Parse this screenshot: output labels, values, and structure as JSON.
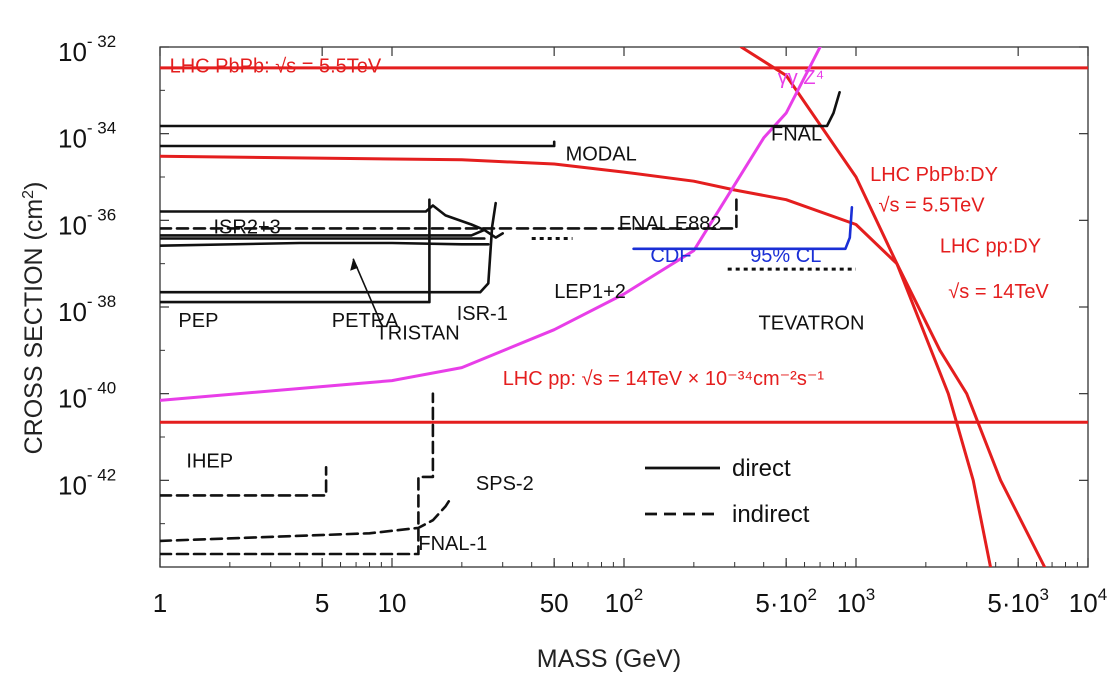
{
  "chart_data": {
    "type": "line",
    "xlabel": "MASS (GeV)",
    "ylabel": "CROSS SECTION (cm",
    "ylabel_sup": "2",
    "ylabel_close": ")",
    "x_scale": "log",
    "y_scale": "log",
    "xlim": [
      1,
      10000
    ],
    "ylim": [
      1e-44,
      1e-32
    ],
    "x_ticks": [
      {
        "value": 1,
        "label": "1"
      },
      {
        "value": 5,
        "label": "5"
      },
      {
        "value": 10,
        "label": "10"
      },
      {
        "value": 50,
        "label": "50"
      },
      {
        "value": 100,
        "label": "10",
        "exp": "2"
      },
      {
        "value": 500,
        "label": "5·10",
        "exp": "2"
      },
      {
        "value": 1000,
        "label": "10",
        "exp": "3"
      },
      {
        "value": 5000,
        "label": "5·10",
        "exp": "3"
      },
      {
        "value": 10000,
        "label": "10",
        "exp": "4"
      }
    ],
    "y_ticks": [
      {
        "value": -32,
        "label": "10",
        "exp": "- 32"
      },
      {
        "value": -34,
        "label": "10",
        "exp": "- 34"
      },
      {
        "value": -36,
        "label": "10",
        "exp": "- 36"
      },
      {
        "value": -38,
        "label": "10",
        "exp": "- 38"
      },
      {
        "value": -40,
        "label": "10",
        "exp": "- 40"
      },
      {
        "value": -42,
        "label": "10",
        "exp": "- 42"
      }
    ],
    "grid": false,
    "legend": {
      "position": "bottom-right",
      "entries": [
        {
          "label": "direct",
          "style": "solid"
        },
        {
          "label": "indirect",
          "style": "dashed"
        }
      ]
    },
    "colors": {
      "lhc": "#e41e1e",
      "gg": "#e83ee8",
      "cdf": "#1a2fd6",
      "black": "#111111",
      "frame": "#333333"
    },
    "series": [
      {
        "name": "LHC PbPb: √s = 5.5TeV",
        "style": "solid",
        "color": "red",
        "points": [
          [
            1,
            3.3e-33
          ],
          [
            10000,
            3.3e-33
          ]
        ]
      },
      {
        "name": "LHC pp: √s = 14TeV × 10⁻³⁴cm⁻²s⁻¹",
        "style": "solid",
        "color": "red",
        "points": [
          [
            1,
            2.2e-41
          ],
          [
            10000,
            2.2e-41
          ]
        ]
      },
      {
        "name": "LHC PbPb:DY √s = 5.5TeV",
        "style": "solid",
        "color": "red",
        "points": [
          [
            1,
            3e-35
          ],
          [
            20,
            2.5e-35
          ],
          [
            50,
            2e-35
          ],
          [
            100,
            1.3e-35
          ],
          [
            200,
            8e-36
          ],
          [
            300,
            5e-36
          ],
          [
            500,
            3e-36
          ],
          [
            1000,
            8e-37
          ],
          [
            1500,
            1e-37
          ],
          [
            2500,
            1e-40
          ],
          [
            3200,
            1e-42
          ],
          [
            3800,
            1e-44
          ]
        ]
      },
      {
        "name": "LHC pp:DY √s = 14TeV",
        "style": "solid",
        "color": "red",
        "points": [
          [
            320,
            1e-32
          ],
          [
            500,
            2.2e-33
          ],
          [
            1000,
            1e-35
          ],
          [
            1500,
            1e-37
          ],
          [
            2300,
            1e-39
          ],
          [
            3000,
            1e-40
          ],
          [
            4200,
            1e-42
          ],
          [
            6500,
            1e-44
          ]
        ]
      },
      {
        "name": "γγ Z⁴",
        "style": "solid",
        "color": "magenta",
        "points": [
          [
            1,
            7e-41
          ],
          [
            10,
            2e-40
          ],
          [
            20,
            4e-40
          ],
          [
            50,
            3e-39
          ],
          [
            100,
            2e-38
          ],
          [
            200,
            2e-37
          ],
          [
            400,
            8e-35
          ],
          [
            500,
            3e-34
          ],
          [
            700,
            1e-32
          ]
        ]
      },
      {
        "name": "FNAL",
        "style": "solid",
        "color": "black",
        "points": [
          [
            1,
            1.5e-34
          ],
          [
            750,
            1.5e-34
          ],
          [
            800,
            3e-34
          ],
          [
            850,
            9e-34
          ]
        ]
      },
      {
        "name": "MODAL",
        "style": "solid",
        "color": "black",
        "points": [
          [
            1,
            5.2e-35
          ],
          [
            50,
            5.2e-35
          ],
          [
            50,
            6.5e-35
          ]
        ]
      },
      {
        "name": "ISR2+3",
        "style": "solid",
        "color": "black",
        "points": [
          [
            1,
            1.6e-36
          ],
          [
            14,
            1.6e-36
          ],
          [
            15,
            2.2e-36
          ],
          [
            17,
            1.3e-36
          ],
          [
            22,
            8e-37
          ],
          [
            25,
            6e-37
          ]
        ]
      },
      {
        "name": "FNAL E882",
        "style": "dashed",
        "color": "black",
        "points": [
          [
            1,
            6.5e-37
          ],
          [
            305,
            6.5e-37
          ],
          [
            305,
            3e-36
          ]
        ]
      },
      {
        "name": "PEP",
        "style": "solid",
        "color": "black",
        "points": [
          [
            1,
            1.3e-38
          ],
          [
            14.5,
            1.3e-38
          ],
          [
            14.5,
            3e-36
          ]
        ]
      },
      {
        "name": "PETRA",
        "style": "solid",
        "color": "black",
        "points": [
          [
            1,
            2.2e-38
          ],
          [
            14,
            2.2e-38
          ],
          [
            24,
            2.2e-38
          ],
          [
            26,
            3.5e-38
          ],
          [
            27,
            7e-37
          ],
          [
            28,
            2.5e-36
          ]
        ]
      },
      {
        "name": "TRISTAN",
        "style": "solid",
        "color": "black",
        "points": [
          [
            1,
            2.6e-37
          ],
          [
            4,
            3e-37
          ],
          [
            10,
            3e-37
          ],
          [
            20,
            2.8e-37
          ],
          [
            26,
            2.8e-37
          ]
        ]
      },
      {
        "name": "ISR-1",
        "style": "solid",
        "color": "black",
        "points": [
          [
            1,
            3.8e-37
          ],
          [
            25,
            3.8e-37
          ]
        ]
      },
      {
        "name": "LEP1+2",
        "style": "solid",
        "color": "black",
        "points": [
          [
            1,
            4.5e-37
          ],
          [
            22,
            4.5e-37
          ],
          [
            25,
            6e-37
          ],
          [
            28,
            4e-37
          ],
          [
            30,
            5e-37
          ]
        ]
      },
      {
        "name": "LEP1+2 dots",
        "style": "dotted",
        "color": "black",
        "points": [
          [
            40,
            3.8e-37
          ],
          [
            60,
            3.8e-37
          ]
        ]
      },
      {
        "name": "CDF 95% CL",
        "style": "solid",
        "color": "blue",
        "points": [
          [
            110,
            2.2e-37
          ],
          [
            900,
            2.2e-37
          ],
          [
            940,
            4e-37
          ],
          [
            960,
            2e-36
          ]
        ]
      },
      {
        "name": "TEVATRON",
        "style": "dotted",
        "color": "black",
        "points": [
          [
            280,
            7.5e-38
          ],
          [
            1000,
            7.5e-38
          ]
        ]
      },
      {
        "name": "IHEP",
        "style": "dashed",
        "color": "black",
        "points": [
          [
            1,
            4.5e-43
          ],
          [
            5.2,
            4.5e-43
          ],
          [
            5.2,
            2e-42
          ]
        ]
      },
      {
        "name": "SPS-2",
        "style": "dashed",
        "color": "black",
        "points": [
          [
            1,
            4e-44
          ],
          [
            8,
            6e-44
          ],
          [
            13,
            8e-44
          ],
          [
            15,
            1.2e-43
          ],
          [
            17,
            2.5e-43
          ],
          [
            18,
            4e-43
          ]
        ]
      },
      {
        "name": "FNAL-1",
        "style": "dashed",
        "color": "black",
        "points": [
          [
            1,
            2e-44
          ],
          [
            13,
            2e-44
          ],
          [
            13,
            1.2e-42
          ],
          [
            15,
            1.2e-42
          ],
          [
            15,
            1e-40
          ]
        ]
      }
    ],
    "annotations": [
      {
        "text": "LHC PbPb: √s  =  5.5TeV",
        "color": "red",
        "x": 1.1,
        "y": 2.6e-33
      },
      {
        "text": "γγ Z⁴",
        "color": "magenta",
        "x": 460,
        "y": 1.4e-33
      },
      {
        "text": "FNAL",
        "color": "black",
        "x": 430,
        "y": 7e-35
      },
      {
        "text": "MODAL",
        "color": "black",
        "x": 56,
        "y": 2.4e-35
      },
      {
        "text": "LHC PbPb:DY",
        "color": "red",
        "x": 1150,
        "y": 8e-36
      },
      {
        "text": "√s  =  5.5TeV",
        "color": "red",
        "x": 1250,
        "y": 1.6e-36
      },
      {
        "text": "ISR2+3",
        "color": "black",
        "x": 1.7,
        "y": 5e-37
      },
      {
        "text": "FNAL E882",
        "color": "black",
        "x": 95,
        "y": 6e-37
      },
      {
        "text": "CDF",
        "color": "blue",
        "x": 130,
        "y": 1.1e-37
      },
      {
        "text": "95% CL",
        "color": "blue",
        "x": 350,
        "y": 1.1e-37
      },
      {
        "text": "LHC pp:DY",
        "color": "red",
        "x": 2300,
        "y": 1.8e-37
      },
      {
        "text": "LEP1+2",
        "color": "black",
        "x": 50,
        "y": 1.6e-38
      },
      {
        "text": "√s  =  14TeV",
        "color": "red",
        "x": 2500,
        "y": 1.6e-38
      },
      {
        "text": "TEVATRON",
        "color": "black",
        "x": 380,
        "y": 3e-39
      },
      {
        "text": "PEP",
        "color": "black",
        "x": 1.2,
        "y": 3.5e-39
      },
      {
        "text": "PETRA",
        "color": "black",
        "x": 5.5,
        "y": 3.5e-39
      },
      {
        "text": "ISR-1",
        "color": "black",
        "x": 19,
        "y": 5e-39
      },
      {
        "text": "TRISTAN",
        "color": "black",
        "x": 8.5,
        "y": 1.8e-39
      },
      {
        "text": "LHC pp: √s  =  14TeV × 10⁻³⁴cm⁻²s⁻¹",
        "color": "red",
        "x": 30,
        "y": 1.6e-40
      },
      {
        "text": "IHEP",
        "color": "black",
        "x": 1.3,
        "y": 2e-42
      },
      {
        "text": "SPS-2",
        "color": "black",
        "x": 23,
        "y": 6e-43
      },
      {
        "text": "FNAL-1",
        "color": "black",
        "x": 13,
        "y": 2.5e-44
      }
    ]
  }
}
